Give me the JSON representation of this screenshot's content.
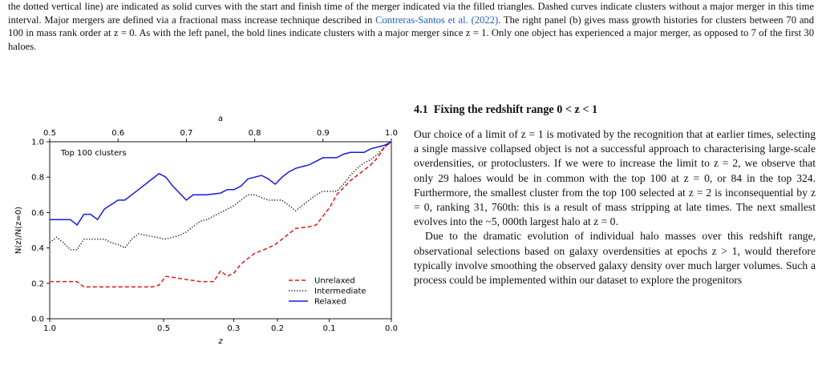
{
  "caption": {
    "part1": "the dotted vertical line) are indicated as solid curves with the start and finish time of the merger indicated via the filled triangles. Dashed curves indicate clusters without a major merger in this time interval. Major mergers are defined via a fractional mass increase technique described in ",
    "citation": "Contreras-Santos et al. (2022)",
    "part2": ". The right panel (b) gives mass growth histories for clusters between 70 and 100 in mass rank order at z = 0. As with the left panel, the bold lines indicate clusters with a major merger since z = 1. Only one object has experienced a major merger, as opposed to 7 of the first 30 haloes."
  },
  "section": {
    "number": "4.1",
    "title": "Fixing the redshift range 0 < z < 1"
  },
  "paragraphs": [
    "Our choice of a limit of z = 1 is motivated by the recognition that at earlier times, selecting a single massive collapsed object is not a successful approach to characterising large-scale overdensities, or protoclusters. If we were to increase the limit to z = 2, we observe that only 29 haloes would be in common with the top 100 at z = 0, or 84 in the top 324. Furthermore, the smallest cluster from the top 100 selected at z = 2 is inconsequential by z = 0, ranking 31, 760th: this is a result of mass stripping at late times. The next smallest evolves into the ~5, 000th largest halo at z = 0.",
    "Due to the dramatic evolution of individual halo masses over this redshift range, observational selections based on galaxy overdensities at epochs z > 1, would therefore typically involve smoothing the observed galaxy density over much larger volumes. Such a process could be implemented within our dataset to explore the progenitors"
  ],
  "chart_data": {
    "type": "line",
    "annotation": "Top 100 clusters",
    "xlabel": "z",
    "top_xlabel": "a",
    "ylabel": "N(z)/N(z=0)",
    "x_scale": "a = 1/(1+z), axis reversed from z = 1.0 (left) to z = 0.0 (right)",
    "xlim_a": [
      0.5,
      1.0
    ],
    "ylim": [
      0.0,
      1.0
    ],
    "xticks_z": [
      1.0,
      0.5,
      0.3,
      0.2,
      0.1,
      0.0
    ],
    "xticklabels_z": [
      "1.0",
      "0.5",
      "0.3",
      "0.2",
      "0.1",
      "0.0"
    ],
    "xticks_a": [
      0.5,
      0.6,
      0.7,
      0.8,
      0.9,
      1.0
    ],
    "xticklabels_a": [
      "0.5",
      "0.6",
      "0.7",
      "0.8",
      "0.9",
      "1.0"
    ],
    "yticks": [
      0.0,
      0.2,
      0.4,
      0.6,
      0.8,
      1.0
    ],
    "yticklabels": [
      "0.0",
      "0.2",
      "0.4",
      "0.6",
      "0.8",
      "1.0"
    ],
    "legend_placement": "lower-right",
    "grid": false,
    "series": [
      {
        "name": "Unrelaxed",
        "color": "#e8161b",
        "style": "dashed",
        "a": [
          0.5,
          0.54,
          0.55,
          0.6,
          0.65,
          0.66,
          0.67,
          0.72,
          0.73,
          0.74,
          0.75,
          0.76,
          0.77,
          0.78,
          0.8,
          0.82,
          0.83,
          0.84,
          0.85,
          0.86,
          0.88,
          0.89,
          0.9,
          0.91,
          0.92,
          0.94,
          0.96,
          0.97,
          0.98,
          0.99,
          1.0
        ],
        "y": [
          0.21,
          0.21,
          0.18,
          0.18,
          0.18,
          0.19,
          0.24,
          0.21,
          0.21,
          0.21,
          0.27,
          0.24,
          0.26,
          0.31,
          0.37,
          0.4,
          0.42,
          0.45,
          0.48,
          0.51,
          0.52,
          0.53,
          0.58,
          0.63,
          0.7,
          0.78,
          0.84,
          0.87,
          0.91,
          0.97,
          1.0
        ]
      },
      {
        "name": "Intermediate",
        "color": "#111111",
        "style": "dotted",
        "a": [
          0.5,
          0.51,
          0.52,
          0.53,
          0.54,
          0.55,
          0.58,
          0.59,
          0.6,
          0.61,
          0.62,
          0.63,
          0.67,
          0.68,
          0.69,
          0.7,
          0.72,
          0.73,
          0.75,
          0.76,
          0.77,
          0.79,
          0.8,
          0.82,
          0.84,
          0.85,
          0.86,
          0.88,
          0.89,
          0.9,
          0.91,
          0.92,
          0.93,
          0.94,
          0.95,
          0.96,
          0.97,
          0.98,
          0.99,
          1.0
        ],
        "y": [
          0.43,
          0.46,
          0.43,
          0.39,
          0.39,
          0.45,
          0.45,
          0.43,
          0.42,
          0.4,
          0.45,
          0.48,
          0.45,
          0.46,
          0.47,
          0.49,
          0.55,
          0.56,
          0.6,
          0.62,
          0.64,
          0.7,
          0.7,
          0.67,
          0.67,
          0.64,
          0.61,
          0.67,
          0.7,
          0.72,
          0.72,
          0.72,
          0.76,
          0.81,
          0.85,
          0.88,
          0.9,
          0.93,
          0.97,
          1.0
        ]
      },
      {
        "name": "Relaxed",
        "color": "#1a1ae0",
        "style": "solid",
        "a": [
          0.5,
          0.53,
          0.54,
          0.55,
          0.56,
          0.57,
          0.58,
          0.6,
          0.61,
          0.62,
          0.63,
          0.65,
          0.66,
          0.67,
          0.68,
          0.7,
          0.71,
          0.73,
          0.75,
          0.76,
          0.77,
          0.78,
          0.79,
          0.8,
          0.81,
          0.82,
          0.83,
          0.84,
          0.85,
          0.86,
          0.88,
          0.89,
          0.9,
          0.91,
          0.92,
          0.93,
          0.94,
          0.95,
          0.96,
          0.97,
          0.98,
          0.99,
          1.0
        ],
        "y": [
          0.56,
          0.56,
          0.53,
          0.59,
          0.59,
          0.56,
          0.62,
          0.67,
          0.67,
          0.7,
          0.73,
          0.79,
          0.82,
          0.8,
          0.75,
          0.67,
          0.7,
          0.7,
          0.71,
          0.73,
          0.73,
          0.75,
          0.79,
          0.8,
          0.81,
          0.79,
          0.76,
          0.8,
          0.83,
          0.85,
          0.87,
          0.89,
          0.91,
          0.91,
          0.91,
          0.93,
          0.94,
          0.94,
          0.94,
          0.96,
          0.97,
          0.98,
          1.0
        ]
      }
    ]
  }
}
